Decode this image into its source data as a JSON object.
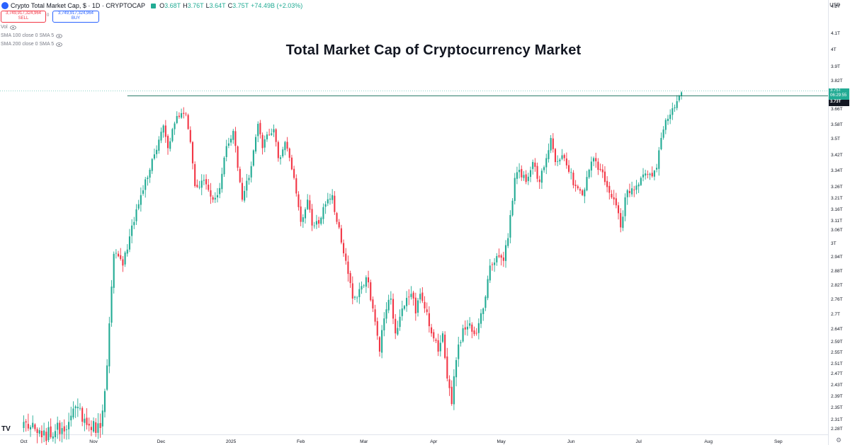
{
  "header": {
    "title": "Crypto Total Market Cap, $ · 1D · CRYPTOCAP",
    "open_label": "O",
    "open_value": "3.68T",
    "high_label": "H",
    "high_value": "3.76T",
    "low_label": "L",
    "low_value": "3.64T",
    "close_label": "C",
    "close_value": "3.75T",
    "change": "+74.49B (+2.03%)"
  },
  "trade": {
    "sell_price": "3,749,917,324,964",
    "sell_label": "SELL",
    "spread": "0",
    "buy_price": "3,749,917,324,964",
    "buy_label": "BUY"
  },
  "indicators": [
    "Vol",
    "SMA 100 close 0 SMA 5",
    "SMA 200 close 0 SMA 5"
  ],
  "price_axis": {
    "currency": "USD",
    "current_price": "3.75T",
    "countdown": "06:29:55",
    "line_price": "3.73T"
  },
  "colors": {
    "up": "#22ab94",
    "down": "#f23645",
    "line": "#2e7d6a"
  },
  "chart_data": {
    "type": "candlestick",
    "title": "Total Market Cap of Cryptocurrency Market",
    "y_unit": "trillion USD",
    "y_ticks": [
      {
        "label": "4.2T",
        "value": 4.2
      },
      {
        "label": "4.1T",
        "value": 4.1
      },
      {
        "label": "4T",
        "value": 4.0
      },
      {
        "label": "3.9T",
        "value": 3.9
      },
      {
        "label": "3.82T",
        "value": 3.82
      },
      {
        "label": "3.66T",
        "value": 3.66
      },
      {
        "label": "3.58T",
        "value": 3.58
      },
      {
        "label": "3.5T",
        "value": 3.5
      },
      {
        "label": "3.42T",
        "value": 3.42
      },
      {
        "label": "3.34T",
        "value": 3.34
      },
      {
        "label": "3.26T",
        "value": 3.26
      },
      {
        "label": "3.21T",
        "value": 3.21
      },
      {
        "label": "3.16T",
        "value": 3.16
      },
      {
        "label": "3.11T",
        "value": 3.11
      },
      {
        "label": "3.06T",
        "value": 3.06
      },
      {
        "label": "3T",
        "value": 3.0
      },
      {
        "label": "2.94T",
        "value": 2.94
      },
      {
        "label": "2.88T",
        "value": 2.88
      },
      {
        "label": "2.82T",
        "value": 2.82
      },
      {
        "label": "2.76T",
        "value": 2.76
      },
      {
        "label": "2.7T",
        "value": 2.7
      },
      {
        "label": "2.64T",
        "value": 2.64
      },
      {
        "label": "2.59T",
        "value": 2.59
      },
      {
        "label": "2.55T",
        "value": 2.55
      },
      {
        "label": "2.51T",
        "value": 2.51
      },
      {
        "label": "2.47T",
        "value": 2.47
      },
      {
        "label": "2.43T",
        "value": 2.43
      },
      {
        "label": "2.39T",
        "value": 2.39
      },
      {
        "label": "2.35T",
        "value": 2.35
      },
      {
        "label": "2.31T",
        "value": 2.31
      },
      {
        "label": "2.28T",
        "value": 2.28
      }
    ],
    "x_ticks": [
      {
        "label": "Oct",
        "day": 0
      },
      {
        "label": "Nov",
        "day": 31
      },
      {
        "label": "Dec",
        "day": 61
      },
      {
        "label": "2025",
        "day": 92
      },
      {
        "label": "Feb",
        "day": 123
      },
      {
        "label": "Mar",
        "day": 151
      },
      {
        "label": "Apr",
        "day": 182
      },
      {
        "label": "May",
        "day": 212
      },
      {
        "label": "Jun",
        "day": 243
      },
      {
        "label": "Jul",
        "day": 273
      },
      {
        "label": "Aug",
        "day": 304
      },
      {
        "label": "Sep",
        "day": 335
      }
    ],
    "horizontal_line": 3.73,
    "last_close": 3.75,
    "anchors": [
      [
        0,
        2.3
      ],
      [
        8,
        2.25
      ],
      [
        14,
        2.27
      ],
      [
        20,
        2.3
      ],
      [
        24,
        2.35
      ],
      [
        28,
        2.29
      ],
      [
        34,
        2.28
      ],
      [
        37,
        2.5
      ],
      [
        40,
        2.95
      ],
      [
        44,
        2.9
      ],
      [
        48,
        3.08
      ],
      [
        52,
        3.22
      ],
      [
        56,
        3.34
      ],
      [
        62,
        3.57
      ],
      [
        64,
        3.45
      ],
      [
        68,
        3.62
      ],
      [
        72,
        3.63
      ],
      [
        74,
        3.48
      ],
      [
        76,
        3.26
      ],
      [
        80,
        3.29
      ],
      [
        84,
        3.2
      ],
      [
        86,
        3.22
      ],
      [
        88,
        3.32
      ],
      [
        90,
        3.46
      ],
      [
        93,
        3.54
      ],
      [
        95,
        3.35
      ],
      [
        97,
        3.2
      ],
      [
        100,
        3.3
      ],
      [
        104,
        3.58
      ],
      [
        106,
        3.45
      ],
      [
        108,
        3.52
      ],
      [
        111,
        3.55
      ],
      [
        113,
        3.4
      ],
      [
        116,
        3.48
      ],
      [
        120,
        3.3
      ],
      [
        123,
        3.1
      ],
      [
        126,
        3.2
      ],
      [
        128,
        3.08
      ],
      [
        132,
        3.12
      ],
      [
        134,
        3.18
      ],
      [
        137,
        3.22
      ],
      [
        139,
        3.1
      ],
      [
        143,
        2.92
      ],
      [
        146,
        2.76
      ],
      [
        149,
        2.8
      ],
      [
        152,
        2.85
      ],
      [
        155,
        2.72
      ],
      [
        158,
        2.55
      ],
      [
        160,
        2.68
      ],
      [
        163,
        2.76
      ],
      [
        165,
        2.62
      ],
      [
        168,
        2.72
      ],
      [
        172,
        2.78
      ],
      [
        174,
        2.7
      ],
      [
        176,
        2.78
      ],
      [
        178,
        2.72
      ],
      [
        181,
        2.62
      ],
      [
        184,
        2.55
      ],
      [
        186,
        2.62
      ],
      [
        188,
        2.45
      ],
      [
        190,
        2.36
      ],
      [
        192,
        2.52
      ],
      [
        195,
        2.64
      ],
      [
        198,
        2.66
      ],
      [
        201,
        2.62
      ],
      [
        204,
        2.72
      ],
      [
        207,
        2.9
      ],
      [
        210,
        2.94
      ],
      [
        213,
        2.92
      ],
      [
        215,
        3.02
      ],
      [
        218,
        3.3
      ],
      [
        220,
        3.34
      ],
      [
        223,
        3.28
      ],
      [
        226,
        3.38
      ],
      [
        229,
        3.28
      ],
      [
        232,
        3.4
      ],
      [
        234,
        3.5
      ],
      [
        236,
        3.38
      ],
      [
        240,
        3.4
      ],
      [
        242,
        3.33
      ],
      [
        245,
        3.26
      ],
      [
        248,
        3.22
      ],
      [
        251,
        3.34
      ],
      [
        253,
        3.4
      ],
      [
        256,
        3.34
      ],
      [
        258,
        3.28
      ],
      [
        261,
        3.21
      ],
      [
        264,
        3.14
      ],
      [
        265,
        3.07
      ],
      [
        267,
        3.21
      ],
      [
        270,
        3.25
      ],
      [
        274,
        3.3
      ],
      [
        278,
        3.32
      ],
      [
        281,
        3.35
      ],
      [
        283,
        3.5
      ],
      [
        285,
        3.6
      ],
      [
        288,
        3.66
      ],
      [
        290,
        3.7
      ],
      [
        292,
        3.75
      ]
    ]
  }
}
